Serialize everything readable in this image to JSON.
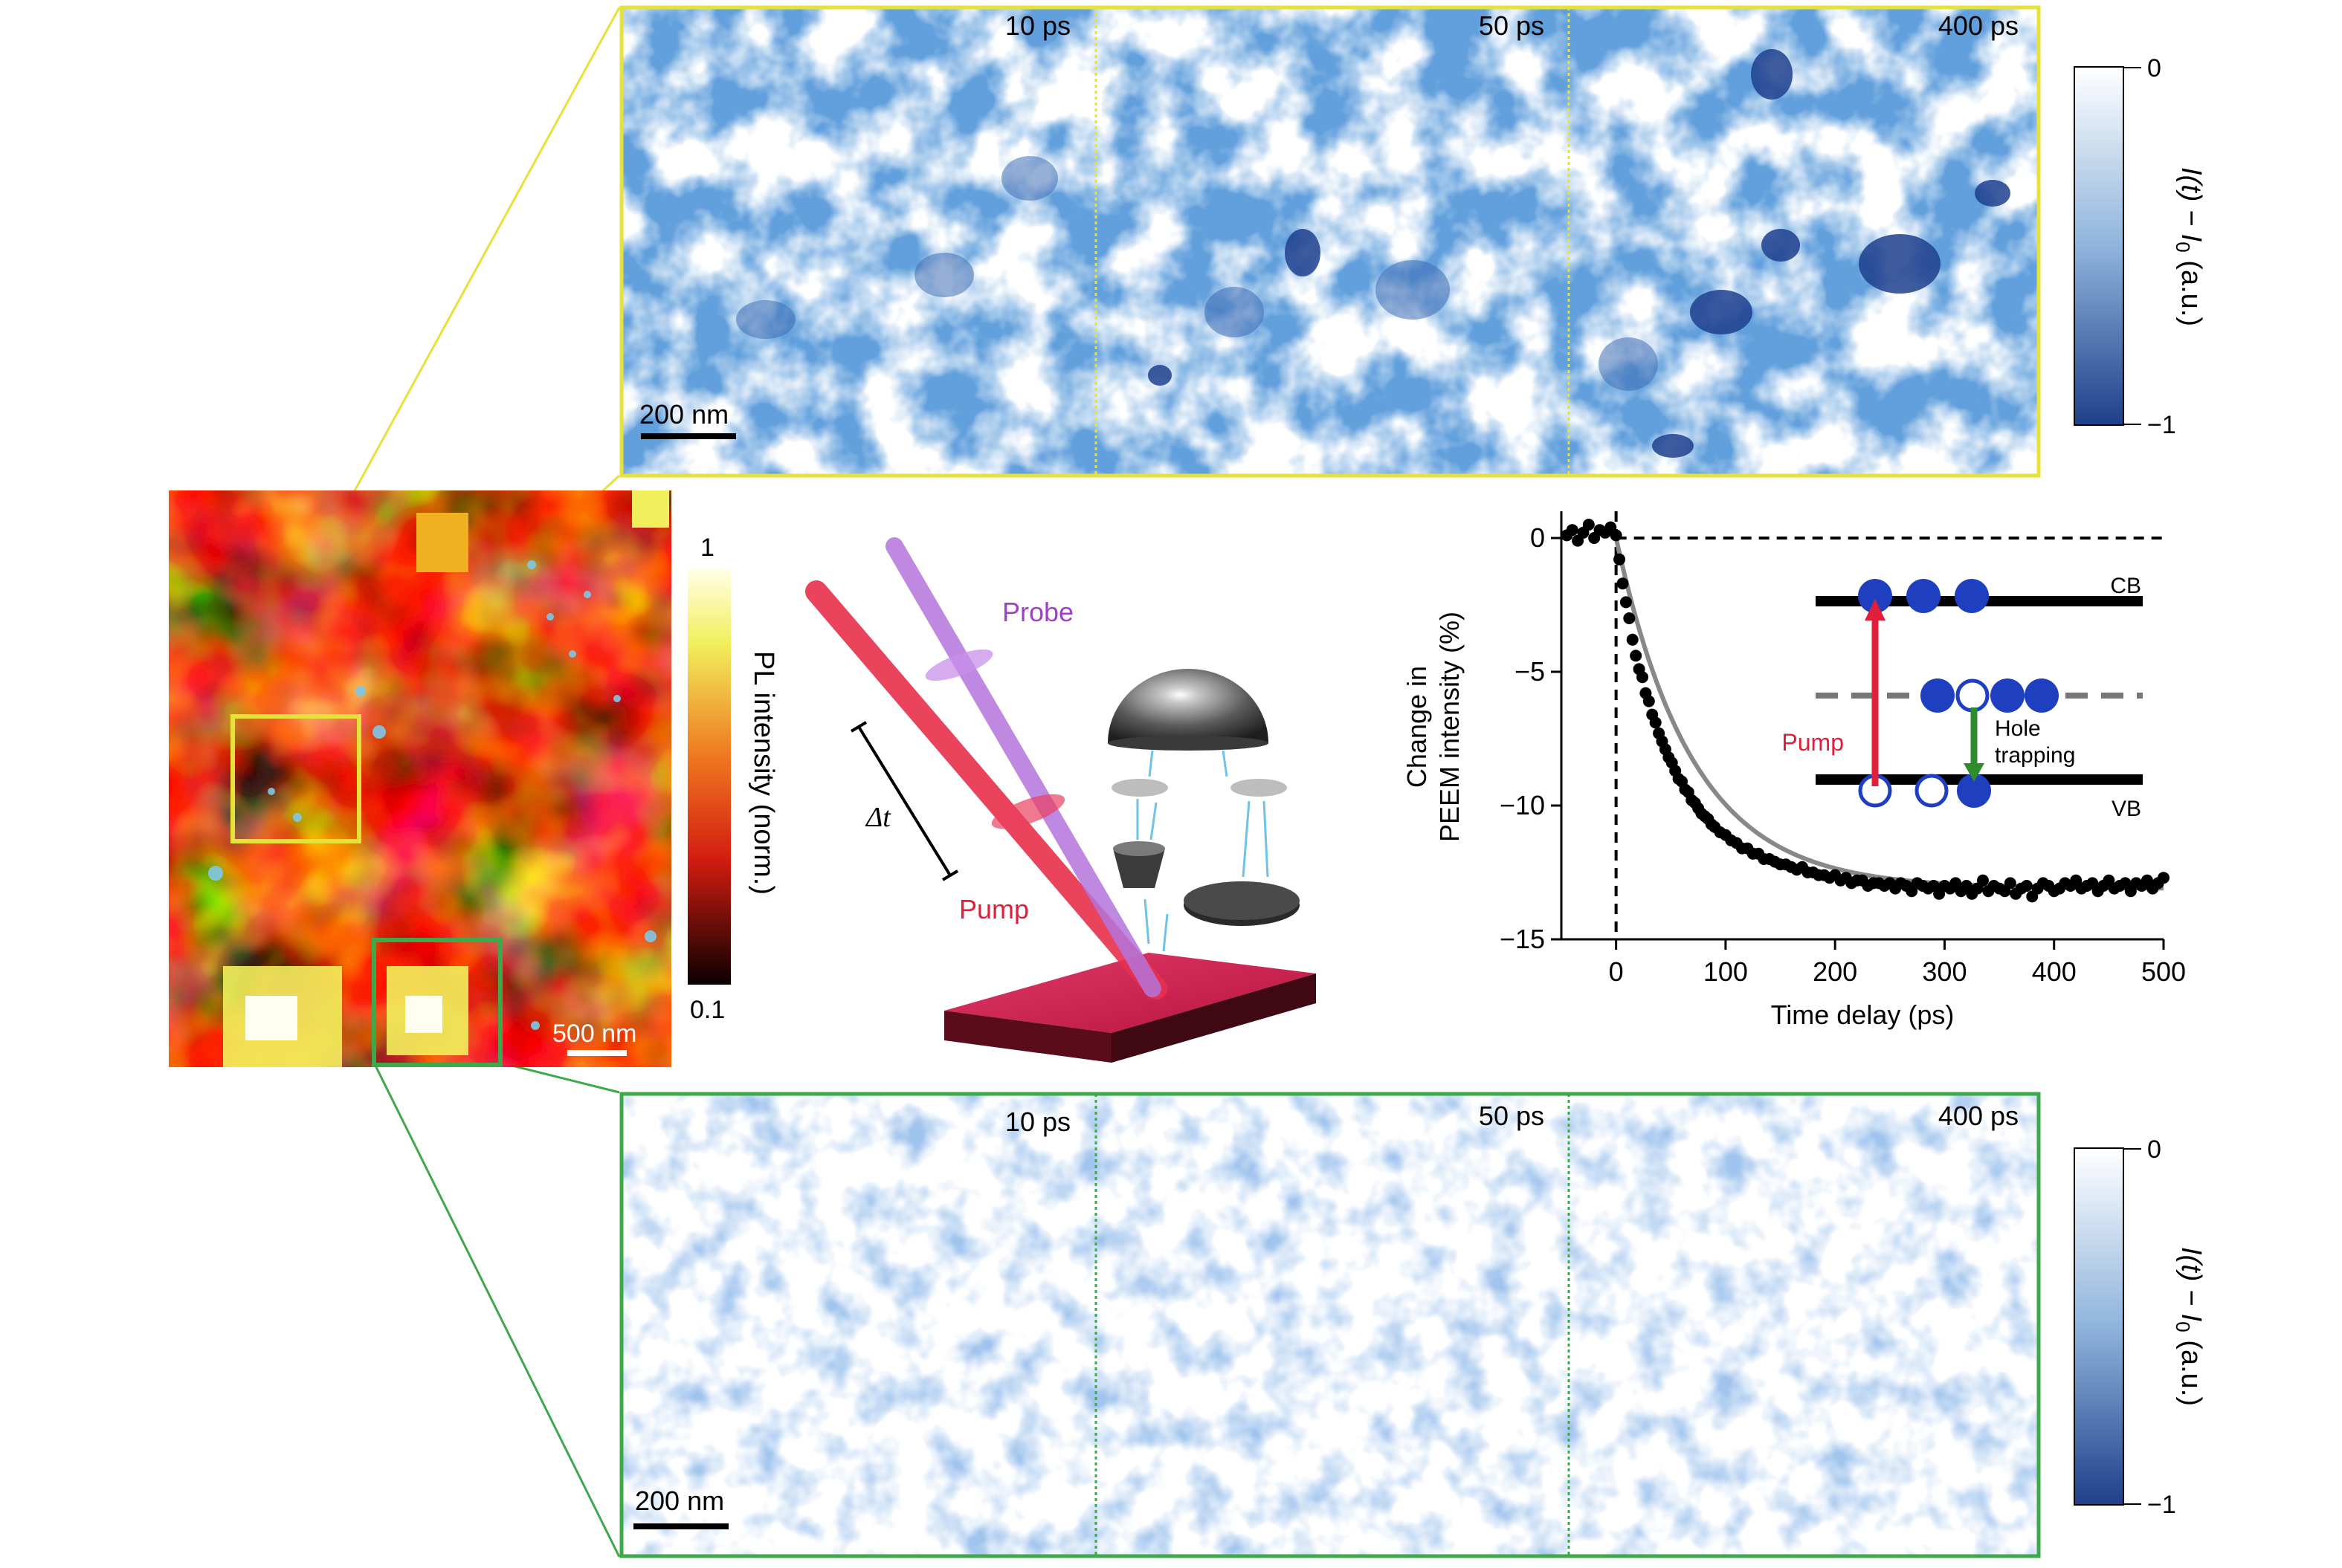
{
  "colors": {
    "yellow_frame": "#e6e23a",
    "green_frame": "#3fa84a",
    "blue_dark": "#1f3f8a",
    "blue_light": "#ffffff",
    "pump_red": "#e0203a",
    "probe_purple": "#b070d8",
    "band_blue": "#1e40c0",
    "arrow_green": "#2e8b2e"
  },
  "top_panel": {
    "frames": [
      {
        "time": "10 ps"
      },
      {
        "time": "50 ps"
      },
      {
        "time": "400 ps"
      }
    ],
    "scalebar_label": "200 nm"
  },
  "bottom_panel": {
    "frames": [
      {
        "time": "10 ps"
      },
      {
        "time": "50 ps"
      },
      {
        "time": "400 ps"
      }
    ],
    "scalebar_label": "200 nm"
  },
  "colorbar_blue": {
    "top_tick": "0",
    "bottom_tick": "−1",
    "label_main": "I(t) − I",
    "label_sub": "0",
    "label_unit": " (a.u.)"
  },
  "pl_map": {
    "scalebar_label": "500 nm",
    "colorbar": {
      "top_tick": "1",
      "bottom_tick": "0.1",
      "label": "PL intensity (norm.)"
    }
  },
  "schematic": {
    "probe_label": "Probe",
    "pump_label": "Pump",
    "delay_label": "Δt"
  },
  "chart_data": {
    "type": "scatter",
    "ylabel_line1": "Change in",
    "ylabel_line2": "PEEM intensity (%)",
    "xlabel": "Time delay (ps)",
    "xlim": [
      -50,
      500
    ],
    "ylim": [
      -15,
      1
    ],
    "xticks": [
      "0",
      "100",
      "200",
      "300",
      "400",
      "500"
    ],
    "yticks": [
      "0",
      "−5",
      "−10",
      "−15"
    ],
    "points": [
      [
        -45,
        0.1
      ],
      [
        -40,
        0.3
      ],
      [
        -35,
        -0.1
      ],
      [
        -30,
        0.2
      ],
      [
        -25,
        0.5
      ],
      [
        -20,
        0.0
      ],
      [
        -15,
        0.3
      ],
      [
        -10,
        0.2
      ],
      [
        -5,
        0.4
      ],
      [
        0,
        0.1
      ],
      [
        3,
        -0.8
      ],
      [
        6,
        -1.7
      ],
      [
        9,
        -2.4
      ],
      [
        12,
        -3.0
      ],
      [
        15,
        -3.8
      ],
      [
        18,
        -4.4
      ],
      [
        21,
        -4.9
      ],
      [
        24,
        -5.2
      ],
      [
        27,
        -5.8
      ],
      [
        30,
        -6.1
      ],
      [
        33,
        -6.6
      ],
      [
        36,
        -6.9
      ],
      [
        39,
        -7.3
      ],
      [
        42,
        -7.6
      ],
      [
        45,
        -7.9
      ],
      [
        48,
        -8.2
      ],
      [
        51,
        -8.4
      ],
      [
        54,
        -8.7
      ],
      [
        57,
        -9.0
      ],
      [
        60,
        -9.1
      ],
      [
        63,
        -9.4
      ],
      [
        66,
        -9.5
      ],
      [
        69,
        -9.8
      ],
      [
        72,
        -9.9
      ],
      [
        75,
        -10.1
      ],
      [
        78,
        -10.3
      ],
      [
        81,
        -10.4
      ],
      [
        84,
        -10.5
      ],
      [
        87,
        -10.7
      ],
      [
        90,
        -10.8
      ],
      [
        95,
        -11.0
      ],
      [
        100,
        -11.1
      ],
      [
        105,
        -11.3
      ],
      [
        110,
        -11.4
      ],
      [
        115,
        -11.6
      ],
      [
        120,
        -11.6
      ],
      [
        125,
        -11.8
      ],
      [
        130,
        -11.8
      ],
      [
        135,
        -12.0
      ],
      [
        140,
        -12.0
      ],
      [
        145,
        -12.1
      ],
      [
        150,
        -12.2
      ],
      [
        155,
        -12.2
      ],
      [
        160,
        -12.3
      ],
      [
        165,
        -12.4
      ],
      [
        170,
        -12.3
      ],
      [
        175,
        -12.5
      ],
      [
        180,
        -12.5
      ],
      [
        185,
        -12.6
      ],
      [
        190,
        -12.6
      ],
      [
        195,
        -12.7
      ],
      [
        200,
        -12.6
      ],
      [
        205,
        -12.8
      ],
      [
        210,
        -12.7
      ],
      [
        215,
        -12.9
      ],
      [
        220,
        -12.8
      ],
      [
        225,
        -12.8
      ],
      [
        230,
        -13.0
      ],
      [
        235,
        -12.9
      ],
      [
        240,
        -12.9
      ],
      [
        245,
        -13.0
      ],
      [
        250,
        -12.9
      ],
      [
        255,
        -13.1
      ],
      [
        260,
        -12.9
      ],
      [
        265,
        -13.0
      ],
      [
        270,
        -13.2
      ],
      [
        275,
        -12.9
      ],
      [
        280,
        -13.0
      ],
      [
        285,
        -13.1
      ],
      [
        290,
        -13.0
      ],
      [
        295,
        -13.3
      ],
      [
        300,
        -13.0
      ],
      [
        305,
        -13.1
      ],
      [
        310,
        -12.9
      ],
      [
        315,
        -13.2
      ],
      [
        320,
        -13.0
      ],
      [
        325,
        -13.3
      ],
      [
        330,
        -13.1
      ],
      [
        335,
        -12.8
      ],
      [
        340,
        -13.2
      ],
      [
        345,
        -13.0
      ],
      [
        350,
        -13.1
      ],
      [
        355,
        -13.2
      ],
      [
        360,
        -12.9
      ],
      [
        365,
        -13.3
      ],
      [
        370,
        -13.1
      ],
      [
        375,
        -13.0
      ],
      [
        380,
        -13.4
      ],
      [
        385,
        -13.1
      ],
      [
        390,
        -12.9
      ],
      [
        395,
        -13.0
      ],
      [
        400,
        -13.2
      ],
      [
        405,
        -13.1
      ],
      [
        410,
        -12.9
      ],
      [
        415,
        -13.0
      ],
      [
        420,
        -12.8
      ],
      [
        425,
        -13.1
      ],
      [
        430,
        -13.0
      ],
      [
        435,
        -12.9
      ],
      [
        440,
        -13.2
      ],
      [
        445,
        -13.0
      ],
      [
        450,
        -12.8
      ],
      [
        455,
        -13.1
      ],
      [
        460,
        -13.0
      ],
      [
        465,
        -12.9
      ],
      [
        470,
        -13.2
      ],
      [
        475,
        -12.9
      ],
      [
        480,
        -13.0
      ],
      [
        485,
        -12.8
      ],
      [
        490,
        -13.1
      ],
      [
        495,
        -12.9
      ],
      [
        500,
        -12.7
      ]
    ],
    "fit": {
      "amplitude": -13.1,
      "tau_ps": 70
    },
    "inset": {
      "cb_label": "CB",
      "vb_label": "VB",
      "pump_label": "Pump",
      "trap_label_1": "Hole",
      "trap_label_2": "trapping"
    }
  }
}
